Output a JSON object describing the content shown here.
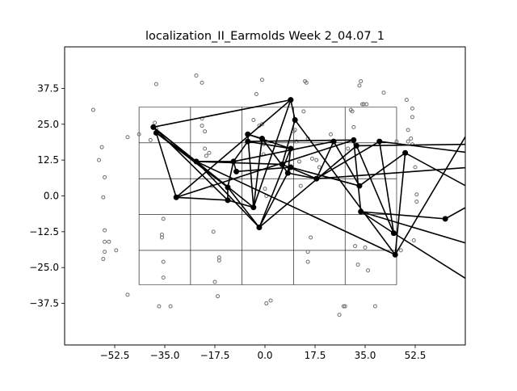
{
  "chart_data": {
    "type": "scatter",
    "title": "localization_II_Earmolds Week 2_04.07_1",
    "xlabel": "",
    "ylabel": "",
    "xlim": [
      -70,
      70
    ],
    "ylim": [
      -52,
      52
    ],
    "xticks": [
      -52.5,
      -35.0,
      -17.5,
      0.0,
      17.5,
      35.0,
      52.5
    ],
    "xtick_labels": [
      "−52.5",
      "−35.0",
      "−17.5",
      "0.0",
      "17.5",
      "35.0",
      "52.5"
    ],
    "yticks": [
      37.5,
      25.0,
      12.5,
      0.0,
      -12.5,
      -25.0,
      -37.5
    ],
    "ytick_labels": [
      "37.5",
      "25.0",
      "12.5",
      "0.0",
      "−12.5",
      "−25.0",
      "−37.5"
    ],
    "grid": {
      "x_lines": [
        -44,
        -26,
        -8,
        10,
        28,
        46
      ],
      "y_lines": [
        31,
        18.5,
        6,
        -6.5,
        -19,
        -31
      ],
      "color": "#000000"
    },
    "scatter_points": [
      [
        -60,
        30
      ],
      [
        -58,
        12.5
      ],
      [
        -57,
        17
      ],
      [
        -56,
        6.5
      ],
      [
        -56.5,
        -0.5
      ],
      [
        -56,
        -12
      ],
      [
        -56,
        -16
      ],
      [
        -54.5,
        -16
      ],
      [
        -56,
        -19.5
      ],
      [
        -56.5,
        -22
      ],
      [
        -52,
        -19
      ],
      [
        -48,
        20.5
      ],
      [
        -48,
        -34.5
      ],
      [
        -44,
        21.5
      ],
      [
        -40,
        19.5
      ],
      [
        -38.5,
        25.5
      ],
      [
        -38,
        23.5
      ],
      [
        -38,
        39
      ],
      [
        -37,
        -38.5
      ],
      [
        -36,
        -13.5
      ],
      [
        -36,
        -14.5
      ],
      [
        -35.5,
        -8
      ],
      [
        -35.5,
        -23
      ],
      [
        -35.5,
        -28.5
      ],
      [
        -33,
        -38.5
      ],
      [
        -24,
        42
      ],
      [
        -22,
        39.5
      ],
      [
        -22,
        24.5
      ],
      [
        -22,
        27
      ],
      [
        -21,
        22.5
      ],
      [
        -21,
        16.5
      ],
      [
        -20.5,
        14
      ],
      [
        -19.5,
        15
      ],
      [
        -18.5,
        3.5
      ],
      [
        -18,
        -12.5
      ],
      [
        -17.5,
        -30
      ],
      [
        -16.5,
        -35
      ],
      [
        -16,
        -21.5
      ],
      [
        -16,
        -22.5
      ],
      [
        -4,
        26.5
      ],
      [
        -3,
        35.5
      ],
      [
        -2,
        24.5
      ],
      [
        -1,
        40.5
      ],
      [
        -1,
        25
      ],
      [
        -0.5,
        18
      ],
      [
        -0.5,
        14.5
      ],
      [
        0,
        2.5
      ],
      [
        0.5,
        0
      ],
      [
        0.5,
        -37.5
      ],
      [
        2,
        -36.5
      ],
      [
        10,
        22.5
      ],
      [
        10.5,
        23
      ],
      [
        11,
        19
      ],
      [
        12,
        12
      ],
      [
        12.5,
        3.5
      ],
      [
        13.5,
        29.5
      ],
      [
        14,
        40
      ],
      [
        14.5,
        39.5
      ],
      [
        15,
        20
      ],
      [
        15,
        -19.5
      ],
      [
        16,
        -14.5
      ],
      [
        16.5,
        13
      ],
      [
        18,
        12.5
      ],
      [
        19,
        10
      ],
      [
        23,
        21.5
      ],
      [
        27.5,
        -38.5
      ],
      [
        28,
        -38.5
      ],
      [
        29,
        16.5
      ],
      [
        30,
        30
      ],
      [
        30.5,
        29.5
      ],
      [
        31,
        24
      ],
      [
        31.5,
        -17.5
      ],
      [
        32.5,
        -24
      ],
      [
        33,
        38.5
      ],
      [
        33.5,
        40
      ],
      [
        34,
        32
      ],
      [
        34.5,
        32
      ],
      [
        35.5,
        32
      ],
      [
        36,
        -26
      ],
      [
        38.5,
        -38.5
      ],
      [
        41.5,
        36
      ],
      [
        47.5,
        -19
      ],
      [
        49.5,
        33.5
      ],
      [
        50,
        23
      ],
      [
        50,
        19
      ],
      [
        51,
        20
      ],
      [
        51.5,
        30.5
      ],
      [
        51.5,
        27.5
      ],
      [
        51.5,
        18
      ],
      [
        52,
        -15.5
      ],
      [
        52.5,
        10
      ],
      [
        53,
        0.5
      ],
      [
        53,
        -2
      ],
      [
        26,
        -41.5
      ],
      [
        35,
        -18
      ],
      [
        46,
        19
      ],
      [
        15,
        -23
      ]
    ],
    "path_points": [
      [
        -39,
        24
      ],
      [
        -38,
        22
      ],
      [
        -24,
        12
      ],
      [
        -31,
        -0.5
      ],
      [
        -13,
        3
      ],
      [
        -13,
        -1.5
      ],
      [
        -4,
        -4
      ],
      [
        -10,
        8.5
      ],
      [
        -11,
        12
      ],
      [
        -6,
        21.5
      ],
      [
        -6,
        19
      ],
      [
        -1,
        20
      ],
      [
        9,
        33.5
      ],
      [
        10.5,
        26.5
      ],
      [
        9,
        16.5
      ],
      [
        6,
        11
      ],
      [
        8,
        8
      ],
      [
        -2,
        -11
      ],
      [
        9,
        10
      ],
      [
        18,
        6
      ],
      [
        24,
        19
      ],
      [
        31,
        19.5
      ],
      [
        32,
        17.5
      ],
      [
        33,
        3.5
      ],
      [
        33.5,
        -5.5
      ],
      [
        45,
        -13
      ],
      [
        45.5,
        -20.5
      ],
      [
        49,
        15
      ],
      [
        40,
        19
      ],
      [
        63,
        -8
      ]
    ],
    "path_segments": [
      [
        0,
        2
      ],
      [
        0,
        5
      ],
      [
        0,
        12
      ],
      [
        1,
        2
      ],
      [
        1,
        3
      ],
      [
        1,
        4
      ],
      [
        2,
        8
      ],
      [
        2,
        15
      ],
      [
        2,
        17
      ],
      [
        3,
        12
      ],
      [
        3,
        21
      ],
      [
        4,
        5
      ],
      [
        4,
        8
      ],
      [
        4,
        17
      ],
      [
        5,
        6
      ],
      [
        6,
        9
      ],
      [
        6,
        11
      ],
      [
        6,
        12
      ],
      [
        7,
        8
      ],
      [
        7,
        18
      ],
      [
        8,
        10
      ],
      [
        8,
        20
      ],
      [
        9,
        11
      ],
      [
        9,
        14
      ],
      [
        10,
        14
      ],
      [
        10,
        21
      ],
      [
        11,
        16
      ],
      [
        12,
        13
      ],
      [
        13,
        15
      ],
      [
        13,
        26
      ],
      [
        14,
        16
      ],
      [
        14,
        17
      ],
      [
        15,
        19
      ],
      [
        16,
        19
      ],
      [
        17,
        18
      ],
      [
        17,
        22
      ],
      [
        18,
        23
      ],
      [
        19,
        20
      ],
      [
        19,
        28
      ],
      [
        20,
        23
      ],
      [
        21,
        24
      ],
      [
        22,
        25
      ],
      [
        23,
        27
      ],
      [
        24,
        25
      ],
      [
        24,
        29
      ],
      [
        25,
        28
      ],
      [
        26,
        27
      ],
      [
        0,
        6
      ],
      [
        2,
        26
      ],
      [
        3,
        5
      ]
    ],
    "path_ends": [
      {
        "from": 29,
        "to": [
          72,
          -3
        ]
      },
      {
        "from": 28,
        "to": [
          72,
          15
        ]
      },
      {
        "from": 27,
        "to": [
          72,
          2.5
        ]
      },
      {
        "from": 26,
        "to": [
          72,
          24
        ]
      },
      {
        "from": 24,
        "to": [
          72,
          -17
        ]
      },
      {
        "from": 22,
        "to": [
          72,
          18
        ]
      },
      {
        "from": 19,
        "to": [
          72,
          10
        ]
      },
      {
        "from": 25,
        "to": [
          72,
          -30
        ]
      }
    ],
    "colors": {
      "scatter_edge": "#6e6e6e",
      "path": "#000000",
      "axes": "#000000"
    }
  }
}
